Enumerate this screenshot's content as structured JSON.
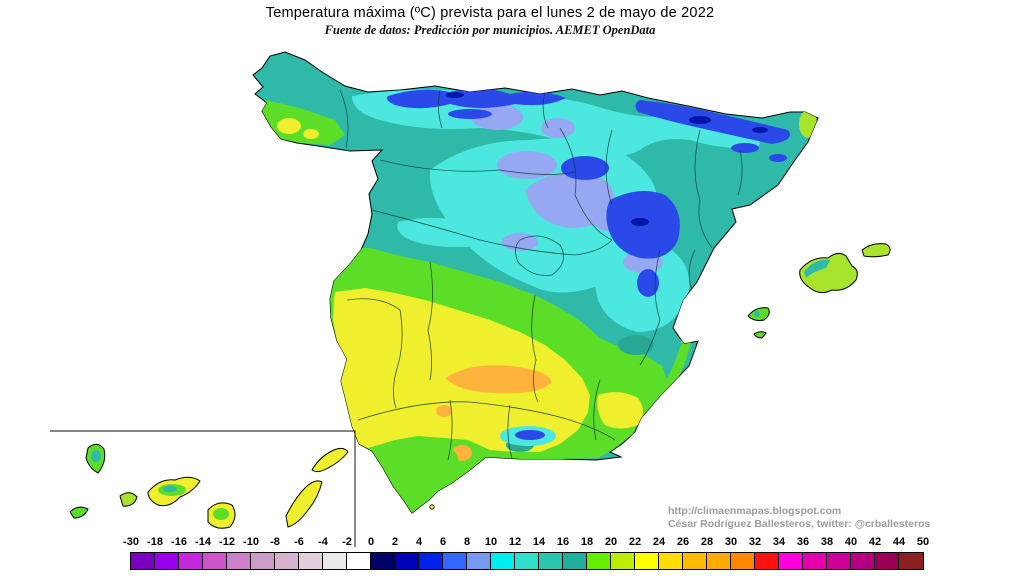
{
  "title": "Temperatura máxima (ºC) prevista para el lunes 2 de mayo de 2022",
  "subtitle": "Fuente de datos: Predicción por municipios. AEMET OpenData",
  "attribution": {
    "url": "http://climaenmapas.blogspot.com",
    "author": "César Rodríguez Ballesteros, twitter: @crballesteros"
  },
  "legend": {
    "unit": "ºC",
    "tick_labels": [
      "-30",
      "-18",
      "-16",
      "-14",
      "-12",
      "-10",
      "-8",
      "-6",
      "-4",
      "-2",
      "0",
      "2",
      "4",
      "6",
      "8",
      "10",
      "12",
      "14",
      "16",
      "18",
      "20",
      "22",
      "24",
      "26",
      "28",
      "30",
      "32",
      "34",
      "36",
      "38",
      "40",
      "42",
      "44",
      "50"
    ],
    "segment_colors": [
      "#7A00BE",
      "#9900EE",
      "#C428DC",
      "#CC55CC",
      "#CC80CC",
      "#CC9CC8",
      "#D6B2CE",
      "#E2CEDE",
      "#EAEAEA",
      "#FFFFFF",
      "#000066",
      "#0000BB",
      "#0022EE",
      "#3366FF",
      "#7799EE",
      "#00EEEE",
      "#33DDCC",
      "#2EC4B2",
      "#23AE9C",
      "#66EE00",
      "#BBEE00",
      "#FFFF00",
      "#FFDD00",
      "#FFBB00",
      "#FFAA00",
      "#FF8800",
      "#FF1111",
      "#FF00DD",
      "#E600AA",
      "#CC0099",
      "#B30080",
      "#990055",
      "#8B2020"
    ]
  },
  "palette": {
    "teal": "#2FB9A9",
    "teal_dark": "#29A795",
    "cyan": "#4CE8E0",
    "periwinkle": "#97A8F3",
    "blue": "#2B49E9",
    "navy": "#0016A8",
    "green": "#5CDD27",
    "yellowgreen": "#A8E42C",
    "yellow": "#EFEF2D",
    "orange": "#FFB23C",
    "outline": "#000000",
    "inset_border": "#3c3c3c"
  },
  "map": {
    "regions": [
      "iberian-peninsula",
      "balearic-islands",
      "canary-islands",
      "ceuta"
    ]
  }
}
